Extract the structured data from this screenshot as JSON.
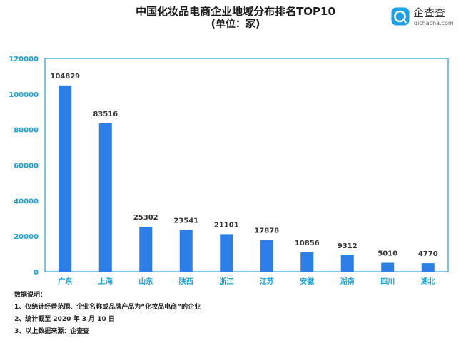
{
  "header": {
    "title": "中国化妆品电商企业地域分布排名TOP10",
    "subtitle": "(单位：家)"
  },
  "logo": {
    "icon": "qichacha-logo-icon",
    "name": "企查查",
    "url_text": "qichacha.com"
  },
  "colors": {
    "bar": "#2b7fe6",
    "axis": "#1aa3d6",
    "tick_label": "#1aa3d6"
  },
  "chart_data": {
    "type": "bar",
    "title": "中国化妆品电商企业地域分布排名TOP10",
    "subtitle": "(单位：家)",
    "categories": [
      "广东",
      "上海",
      "山东",
      "陕西",
      "浙江",
      "江苏",
      "安徽",
      "湖南",
      "四川",
      "湖北"
    ],
    "values": [
      104829,
      83516,
      25302,
      23541,
      21101,
      17878,
      10856,
      9312,
      5010,
      4770
    ],
    "value_labels": [
      "104829",
      "83516",
      "25302",
      "23541",
      "21101",
      "17878",
      "10856",
      "9312",
      "5010",
      "4770"
    ],
    "y_ticks": [
      0,
      20000,
      40000,
      60000,
      80000,
      100000,
      120000
    ],
    "ylim": [
      0,
      120000
    ],
    "xlabel": "",
    "ylabel": "",
    "grid": false,
    "legend": "none"
  },
  "notes": {
    "heading": "数据说明：",
    "items": [
      "1、仅统计经营范围、企业名称或品牌产品为“化妆品电商”的企业",
      "2、统计截至 2020 年 3 月 10 日",
      "3、以上数据来源：企查查"
    ]
  }
}
